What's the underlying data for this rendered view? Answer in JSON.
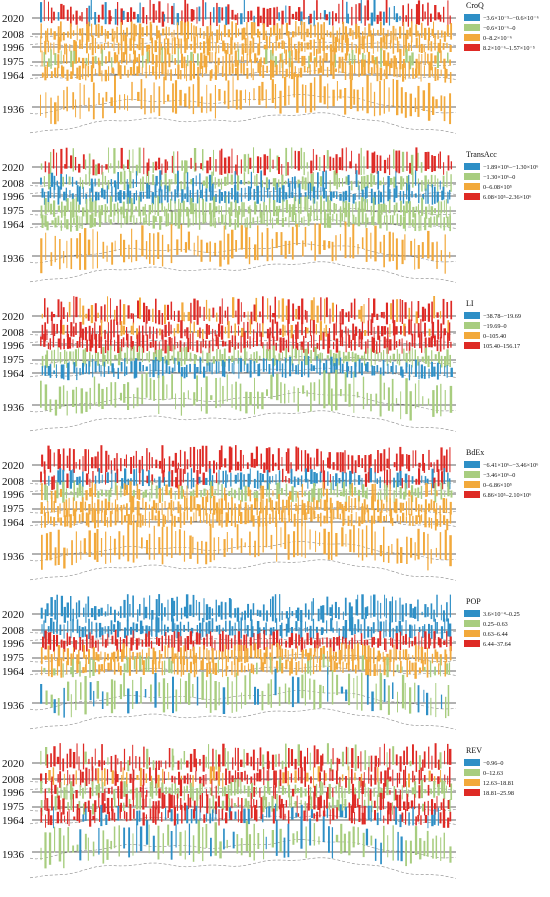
{
  "chart_data": {
    "type": "bar",
    "years": [
      "2020",
      "2008",
      "1996",
      "1975",
      "1964",
      "1936"
    ],
    "colors": {
      "c1": "#2e8fc6",
      "c2": "#a8cd7f",
      "c3": "#f2a93b",
      "c4": "#de2a25"
    },
    "panels": [
      {
        "variable": "CroQ",
        "legend": [
          "−3.6×10⁻⁵–−0.6×10⁻⁶",
          "−0.6×10⁻⁶–0",
          "0–8.2×10⁻⁶",
          "8.2×10⁻⁶–1.57×10⁻⁵"
        ],
        "rows": {
          "2020": "c4",
          "2008": "c3",
          "1996": "c3",
          "1975": "c3",
          "1964": "c3",
          "1936": "c3"
        },
        "accents": {
          "2020": "c1",
          "1975": "c2"
        }
      },
      {
        "variable": "TransAcc",
        "legend": [
          "−1.89×10⁶–−1.30×10⁶",
          "−1.30×10⁶–0",
          "0–6.08×10⁵",
          "6.08×10⁵–2.36×10⁶"
        ],
        "rows": {
          "2020": "c4",
          "2008": "c2",
          "1996": "c1",
          "1975": "c2",
          "1964": "c2",
          "1936": "c3"
        },
        "accents": {
          "2020": "c2",
          "2008": "c1"
        }
      },
      {
        "variable": "LI",
        "legend": [
          "−38.78–−19.69",
          "−19.69–0",
          "0–105.40",
          "105.40–156.17"
        ],
        "rows": {
          "2020": "c4",
          "2008": "c4",
          "1996": "c4",
          "1975": "c2",
          "1964": "c1",
          "1936": "c2"
        },
        "accents": {
          "2020": "c3",
          "2008": "c3"
        }
      },
      {
        "variable": "BdEx",
        "legend": [
          "−6.41×10⁶–−3.46×10⁶",
          "−3.46×10⁶–0",
          "0–6.86×10⁵",
          "6.86×10⁵–2.10×10⁶"
        ],
        "rows": {
          "2020": "c4",
          "2008": "c1",
          "1996": "c2",
          "1975": "c3",
          "1964": "c3",
          "1936": "c3"
        },
        "accents": {
          "2008": "c4",
          "1996": "c3"
        }
      },
      {
        "variable": "POP",
        "legend": [
          "3.6×10⁻⁴–0.25",
          "0.25–0.63",
          "0.63–6.44",
          "6.44–37.64"
        ],
        "rows": {
          "2020": "c1",
          "2008": "c1",
          "1996": "c4",
          "1975": "c3",
          "1964": "c3",
          "1936": "c2"
        },
        "accents": {
          "1936": "c1",
          "1964": "c2"
        }
      },
      {
        "variable": "REV",
        "legend": [
          "−0.96–0",
          "0–12.63",
          "12.63–18.81",
          "18.81–25.98"
        ],
        "rows": {
          "2020": "c4",
          "2008": "c4",
          "1996": "c2",
          "1975": "c4",
          "1964": "c4",
          "1936": "c2"
        },
        "accents": {
          "2020": "c2",
          "2008": "c3",
          "1996": "c4",
          "1975": "c2",
          "1964": "c1",
          "1936": "c1"
        }
      }
    ]
  }
}
